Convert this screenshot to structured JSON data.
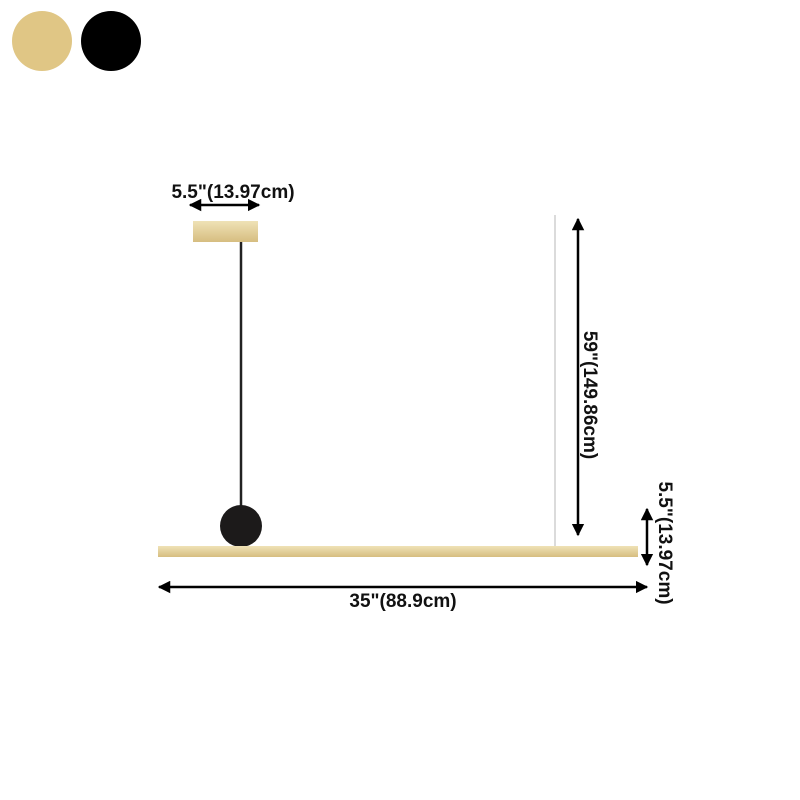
{
  "swatches": [
    {
      "name": "gold",
      "color": "#E0C685"
    },
    {
      "name": "black",
      "color": "#000000"
    }
  ],
  "dimensions": {
    "canopy_width": "5.5\"(13.97cm)",
    "hanging_height": "59\"(149.86cm)",
    "fixture_height": "5.5\"(13.97cm)",
    "fixture_length": "35\"(88.9cm)"
  },
  "colors": {
    "gold": "#DCC48A",
    "dark": "#1c1a1a",
    "arrow": "#000000"
  }
}
